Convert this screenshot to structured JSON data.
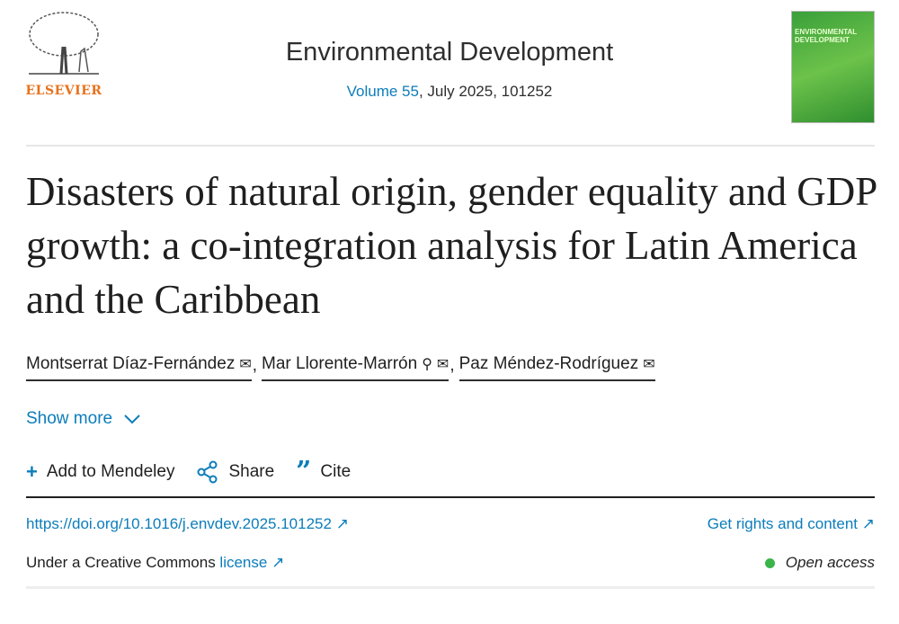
{
  "header": {
    "publisher": "ELSEVIER",
    "journal": "Environmental Development",
    "volume_link": "Volume 55",
    "volume_rest": ", July 2025, 101252",
    "cover_text": "ENVIRONMENTAL DEVELOPMENT"
  },
  "article": {
    "title": "Disasters of natural origin, gender equality and GDP growth: a co-integration analysis for Latin America and the Caribbean",
    "authors": [
      {
        "name": "Montserrat Díaz-Fernández"
      },
      {
        "name": "Mar Llorente-Marrón"
      },
      {
        "name": "Paz Méndez-Rodríguez"
      }
    ],
    "show_more": "Show more"
  },
  "actions": {
    "mendeley": "Add to Mendeley",
    "share": "Share",
    "cite": "Cite"
  },
  "links": {
    "doi": "https://doi.org/10.1016/j.envdev.2025.101252",
    "rights": "Get rights and content",
    "license_prefix": "Under a Creative Commons ",
    "license": "license",
    "open_access": "Open access"
  },
  "colors": {
    "link": "#0c7dbb",
    "publisher": "#e9711c",
    "open_access_dot": "#3ab54a"
  }
}
